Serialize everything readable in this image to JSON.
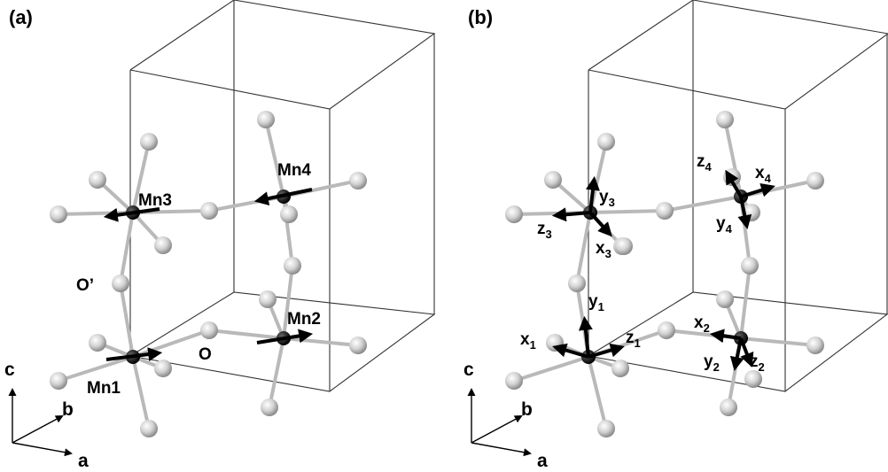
{
  "panels": [
    {
      "label": "(a)",
      "atoms": {
        "mn3": "Mn3",
        "mn4": "Mn4",
        "mn1": "Mn1",
        "mn2": "Mn2",
        "o_prime": "O’",
        "o": "O"
      },
      "axes": {
        "c": "c",
        "b": "b",
        "a": "a"
      }
    },
    {
      "label": "(b)",
      "local_axes": [
        {
          "base": "y",
          "sub": "3"
        },
        {
          "base": "z",
          "sub": "3"
        },
        {
          "base": "x",
          "sub": "3"
        },
        {
          "base": "z",
          "sub": "4"
        },
        {
          "base": "x",
          "sub": "4"
        },
        {
          "base": "y",
          "sub": "4"
        },
        {
          "base": "y",
          "sub": "1"
        },
        {
          "base": "x",
          "sub": "1"
        },
        {
          "base": "z",
          "sub": "1"
        },
        {
          "base": "x",
          "sub": "2"
        },
        {
          "base": "y",
          "sub": "2"
        },
        {
          "base": "z",
          "sub": "2"
        }
      ],
      "axes": {
        "c": "c",
        "b": "b",
        "a": "a"
      }
    }
  ],
  "colors": {
    "mn_atom": "#111111",
    "o_atom": "#cfcfcf",
    "bond": "#b9b9b9",
    "cell": "#333333",
    "arrow": "#000000"
  }
}
